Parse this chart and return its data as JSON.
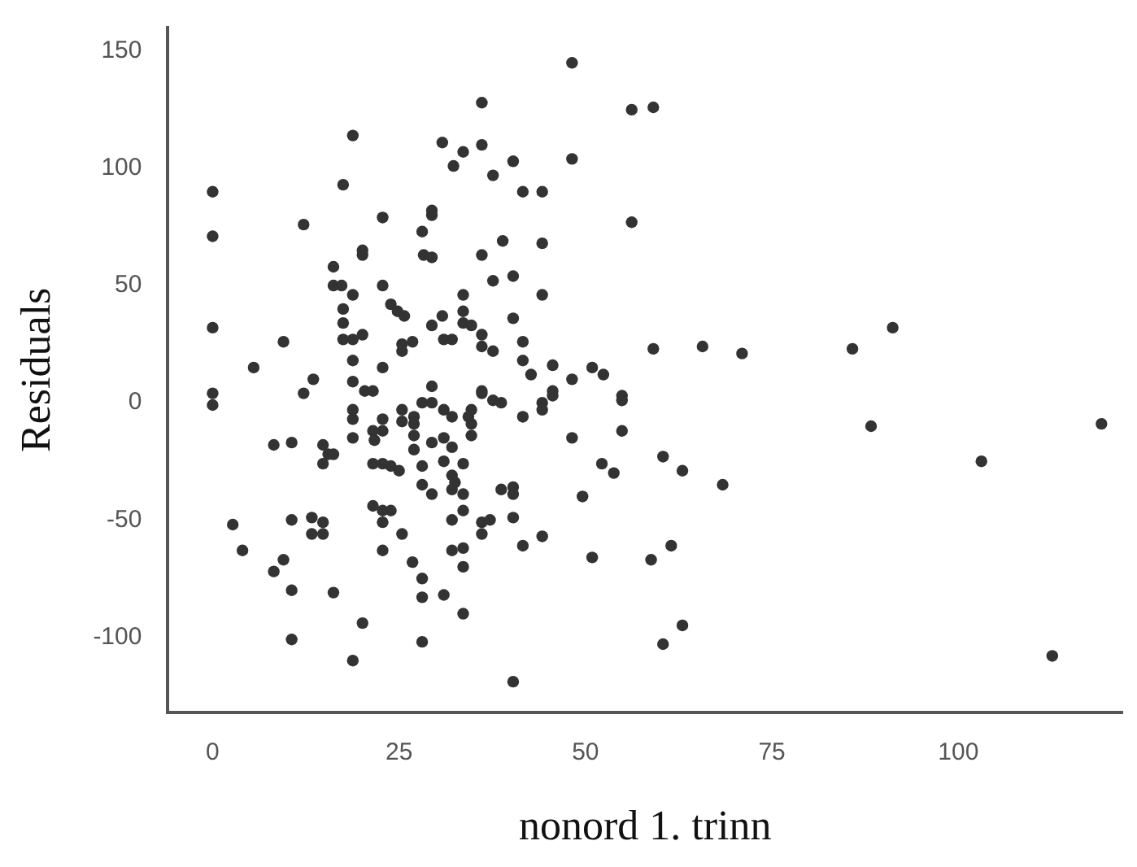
{
  "chart_data": {
    "type": "scatter",
    "xlabel": "nonord 1. trinn",
    "ylabel": "Residuals",
    "xlim": [
      -6,
      122
    ],
    "xticks": [
      0,
      25,
      50,
      75,
      100
    ],
    "ylim": [
      -132,
      160
    ],
    "yticks": [
      -100,
      -50,
      0,
      50,
      100,
      150
    ],
    "grid": false,
    "legend": false,
    "marker": "circle",
    "series": [
      {
        "color": "#333333",
        "x": [
          0,
          0,
          0,
          0,
          0,
          18.8,
          30.8,
          33.6,
          32.3,
          17.5,
          12.2,
          22.8,
          29.4,
          29.4,
          28.1,
          20.1,
          20.1,
          28.3,
          29.4,
          16.2,
          16.2,
          17.3,
          18.8,
          22.8,
          33.6,
          17.5,
          23.9,
          24.8,
          25.7,
          29.4,
          30.8,
          33.6,
          33.6,
          34.7,
          17.5,
          17.5,
          18.8,
          20.1,
          25.4,
          26.8,
          25.4,
          31,
          32.1,
          9.5,
          5.5,
          18.8,
          22.8,
          13.5,
          18.8,
          20.4,
          21.5,
          29.4,
          12.2,
          28.1,
          29.4,
          31,
          32.1,
          34.3,
          18.8,
          18.8,
          25.4,
          27,
          25.4,
          27,
          22.8,
          21.5,
          22.8,
          21.7,
          18.8,
          27,
          27,
          8.2,
          10.6,
          14.8,
          15.5,
          14.8,
          16.2,
          29.4,
          31,
          32.1,
          21.5,
          22.8,
          23.9,
          25,
          28.1,
          31,
          33.6,
          32.1,
          32.5,
          28.1,
          29.4,
          32.1,
          33.6,
          33.6,
          32.1,
          21.5,
          22.8,
          23.9,
          22.8,
          25.4,
          2.7,
          10.6,
          13.3,
          14.8,
          13.3,
          14.8,
          4,
          22.8,
          32.1,
          33.6,
          33.6,
          8.2,
          9.5,
          26.8,
          28.1,
          28.1,
          31,
          10.6,
          16.2,
          33.6,
          20.1,
          10.6,
          28.1,
          18.8,
          48.2,
          36.1,
          56.2,
          59.1,
          36.1,
          40.3,
          48.2,
          37.6,
          41.6,
          44.2,
          56.2,
          38.9,
          36.1,
          44.2,
          37.6,
          40.3,
          44.2,
          40.3,
          36.1,
          36.1,
          37.6,
          41.6,
          41.6,
          45.6,
          42.7,
          48.2,
          50.9,
          52.4,
          59.1,
          65.7,
          71,
          36.1,
          45.6,
          54.9,
          36.1,
          37.6,
          38.7,
          34.7,
          34.7,
          34.7,
          41.6,
          44.2,
          44.2,
          45.6,
          54.9,
          54.9,
          48.2,
          52.2,
          53.8,
          60.4,
          63,
          68.4,
          38.7,
          40.3,
          40.3,
          49.6,
          36.1,
          37.2,
          36.1,
          40.3,
          41.6,
          44.2,
          50.9,
          58.8,
          61.5,
          60.4,
          63,
          40.3,
          91.2,
          85.8,
          88.3,
          103.1,
          119.2,
          112.6
        ],
        "values": [
          90,
          71,
          32,
          4,
          -1,
          114,
          111,
          107,
          101,
          93,
          76,
          79,
          82,
          80,
          73,
          65,
          63,
          63,
          62,
          58,
          50,
          50,
          46,
          50,
          46,
          40,
          42,
          39,
          37,
          33,
          37,
          39,
          34,
          33,
          34,
          27,
          27,
          29,
          25,
          26,
          22,
          27,
          27,
          26,
          15,
          18,
          15,
          10,
          9,
          5,
          5,
          7,
          4,
          0,
          0,
          -3,
          -6,
          -6,
          -3,
          -7,
          -3,
          -6,
          -8,
          -9,
          -7,
          -12,
          -12,
          -16,
          -15,
          -14,
          -20,
          -18,
          -17,
          -18,
          -22,
          -26,
          -22,
          -17,
          -15,
          -19,
          -26,
          -26,
          -27,
          -29,
          -27,
          -25,
          -26,
          -31,
          -34,
          -35,
          -39,
          -37,
          -39,
          -46,
          -50,
          -44,
          -46,
          -46,
          -51,
          -56,
          -52,
          -50,
          -49,
          -51,
          -56,
          -56,
          -63,
          -63,
          -63,
          -62,
          -70,
          -72,
          -67,
          -68,
          -75,
          -83,
          -82,
          -80,
          -81,
          -90,
          -94,
          -101,
          -102,
          -110,
          145,
          128,
          125,
          126,
          110,
          103,
          104,
          97,
          90,
          90,
          77,
          69,
          63,
          68,
          52,
          54,
          46,
          36,
          29,
          24,
          22,
          26,
          18,
          16,
          12,
          10,
          15,
          12,
          23,
          24,
          21,
          5,
          5,
          3,
          4,
          1,
          0,
          -3,
          -9,
          -14,
          -6,
          0,
          -3,
          3,
          1,
          -12,
          -15,
          -26,
          -30,
          -23,
          -29,
          -35,
          -37,
          -36,
          -39,
          -40,
          -51,
          -50,
          -56,
          -49,
          -61,
          -57,
          -66,
          -67,
          -61,
          -103,
          -95,
          -119,
          32,
          23,
          -10,
          -25,
          -9,
          -108
        ]
      }
    ]
  }
}
